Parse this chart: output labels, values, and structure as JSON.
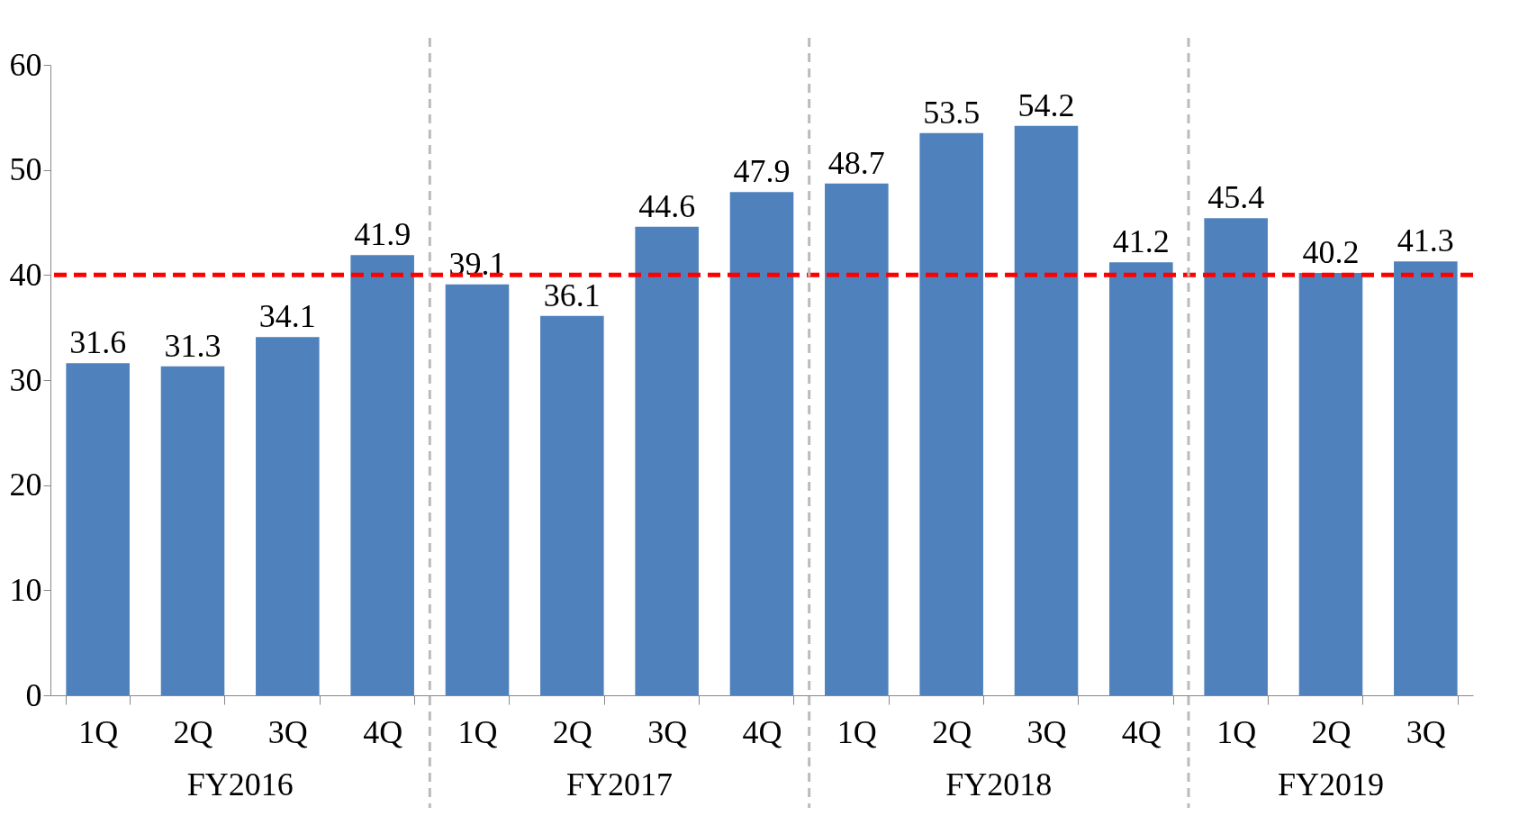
{
  "chart_data": {
    "type": "bar",
    "categories": [
      "1Q",
      "2Q",
      "3Q",
      "4Q",
      "1Q",
      "2Q",
      "3Q",
      "4Q",
      "1Q",
      "2Q",
      "3Q",
      "4Q",
      "1Q",
      "2Q",
      "3Q"
    ],
    "values": [
      31.6,
      31.3,
      34.1,
      41.9,
      39.1,
      36.1,
      44.6,
      47.9,
      48.7,
      53.5,
      54.2,
      41.2,
      45.4,
      40.2,
      41.3
    ],
    "color": "#4f81bd",
    "ylim": [
      0,
      60
    ],
    "yticks": [
      0,
      10,
      20,
      30,
      40,
      50,
      60
    ],
    "ref_lines": [
      {
        "axis": "y",
        "value": 40,
        "color": "#ff0000",
        "line_style": "dashed"
      }
    ],
    "annotations": [
      "FY2016",
      "FY2017",
      "FY2018",
      "FY2019"
    ],
    "data_labels": true,
    "grid": false
  }
}
